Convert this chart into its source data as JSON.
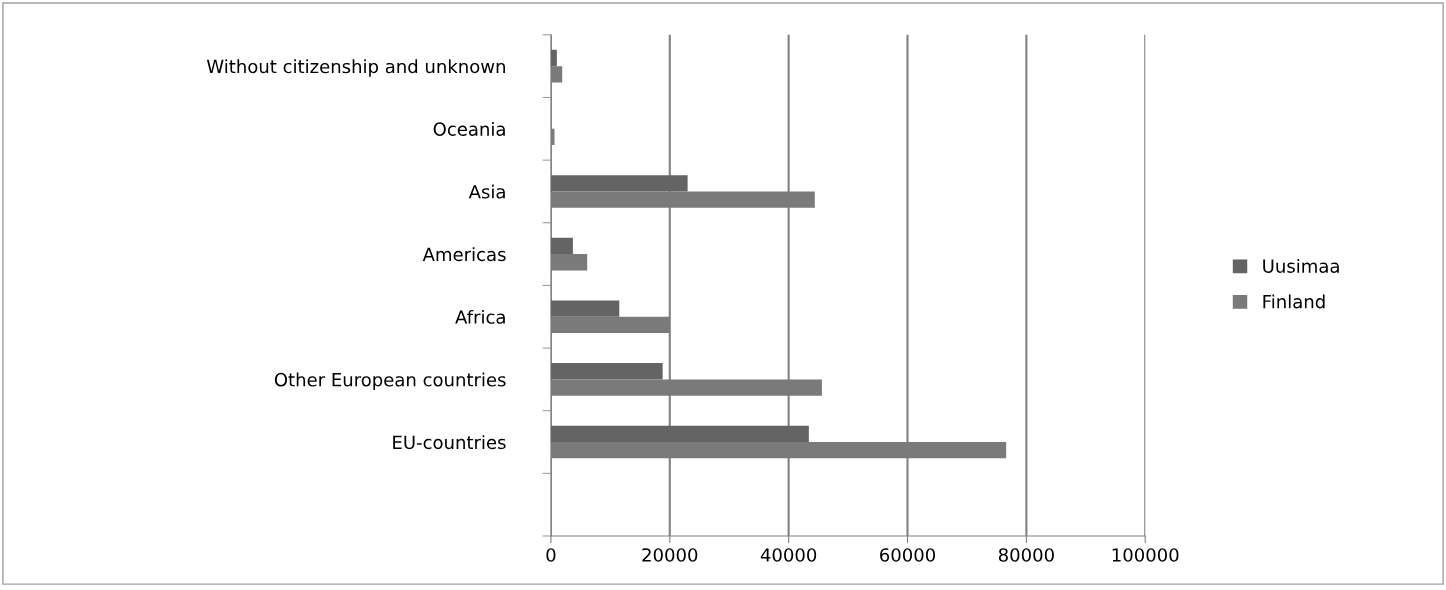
{
  "chart_data": {
    "type": "bar",
    "orientation": "horizontal",
    "categories": [
      "Without citizenship and unknown",
      "Oceania",
      "Asia",
      "Americas",
      "Africa",
      "Other European countries",
      "EU-countries",
      null
    ],
    "series": [
      {
        "name": "Uusimaa",
        "color": "#646464",
        "values": [
          1000,
          0,
          23000,
          3700,
          11500,
          18800,
          43400,
          null
        ]
      },
      {
        "name": "Finland",
        "color": "#7a7a7a",
        "values": [
          1900,
          600,
          44400,
          6100,
          20000,
          45600,
          76600,
          null
        ]
      }
    ],
    "xlim": [
      0,
      100000
    ],
    "xticks": [
      0,
      20000,
      40000,
      60000,
      80000,
      100000
    ],
    "grid": "x",
    "legend": "right"
  }
}
